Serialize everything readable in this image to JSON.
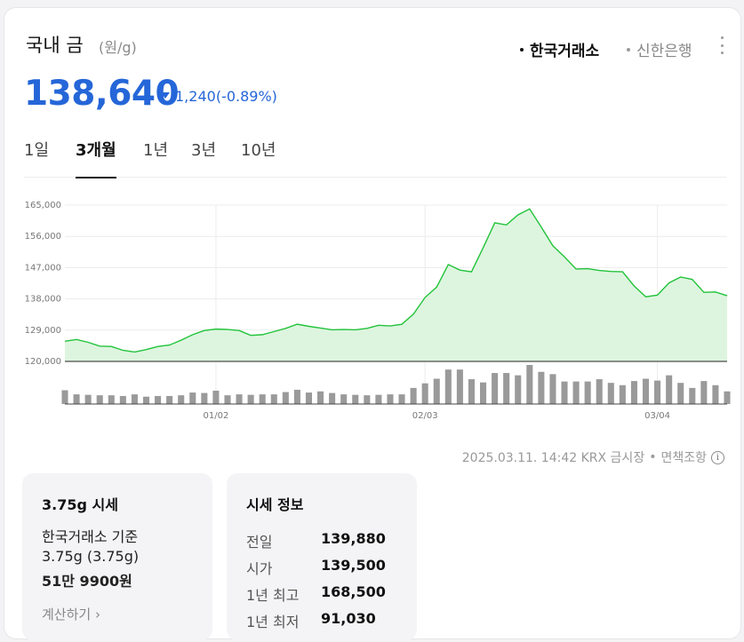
{
  "header": {
    "title": "국내 금",
    "unit": "(원/g)",
    "sources": [
      {
        "label": "한국거래소",
        "selected": true
      },
      {
        "label": "신한은행",
        "selected": false
      }
    ],
    "menu_icon": "more-vertical-icon"
  },
  "quote": {
    "price": "138,640",
    "change": "1,240",
    "change_pct": "(-0.89%)",
    "direction": "down",
    "color": "#2566d8"
  },
  "tabs": [
    {
      "label": "1일",
      "active": false
    },
    {
      "label": "3개월",
      "active": true
    },
    {
      "label": "1년",
      "active": false
    },
    {
      "label": "3년",
      "active": false
    },
    {
      "label": "10년",
      "active": false
    }
  ],
  "chart_data": {
    "type": "area",
    "line_color": "#22c33a",
    "fill_color": "#ddf5df",
    "volume_bar_color": "#9a9a9a",
    "ylim": [
      120000,
      165000
    ],
    "y_ticks": [
      "165,000",
      "156,000",
      "147,000",
      "138,000",
      "129,000",
      "120,000"
    ],
    "y_tick_values": [
      165000,
      156000,
      147000,
      138000,
      129000,
      120000
    ],
    "x_tick_labels": [
      "01/02",
      "02/03",
      "03/04"
    ],
    "x_tick_indices": [
      13,
      31,
      51
    ],
    "grid": true,
    "series": [
      {
        "values": [
          125800,
          126300,
          125500,
          124400,
          124300,
          123200,
          122700,
          123400,
          124300,
          124700,
          126100,
          127700,
          128900,
          129300,
          129200,
          128900,
          127500,
          127700,
          128600,
          129500,
          130700,
          130100,
          129600,
          129100,
          129200,
          129100,
          129500,
          130400,
          130200,
          130700,
          133600,
          138400,
          141400,
          147900,
          146300,
          145800,
          152700,
          159900,
          159300,
          162200,
          163900,
          158700,
          153300,
          150100,
          146600,
          146700,
          146200,
          145900,
          145800,
          141700,
          138600,
          139100,
          142600,
          144300,
          143600,
          139900,
          140000,
          138900
        ]
      }
    ],
    "volume": [
      60,
      42,
      40,
      38,
      38,
      35,
      42,
      32,
      35,
      35,
      38,
      50,
      48,
      58,
      38,
      42,
      40,
      42,
      42,
      52,
      62,
      50,
      55,
      48,
      42,
      40,
      38,
      40,
      42,
      42,
      70,
      90,
      110,
      150,
      150,
      108,
      94,
      135,
      135,
      125,
      170,
      140,
      130,
      98,
      98,
      98,
      108,
      92,
      82,
      100,
      110,
      102,
      125,
      92,
      70,
      100,
      82,
      55
    ]
  },
  "timestamp": "2025.03.11. 14:42 KRX 금시장",
  "disclaimer": "면책조항",
  "box1": {
    "title": "3.75g 시세",
    "line1": "한국거래소 기준",
    "line2": "3.75g (3.75g)",
    "line3": "51만 9900원",
    "link": "계산하기"
  },
  "box2": {
    "title": "시세 정보",
    "rows": [
      {
        "k": "전일",
        "v": "139,880"
      },
      {
        "k": "시가",
        "v": "139,500"
      },
      {
        "k": "1년 최고",
        "v": "168,500"
      },
      {
        "k": "1년 최저",
        "v": "91,030"
      }
    ]
  }
}
